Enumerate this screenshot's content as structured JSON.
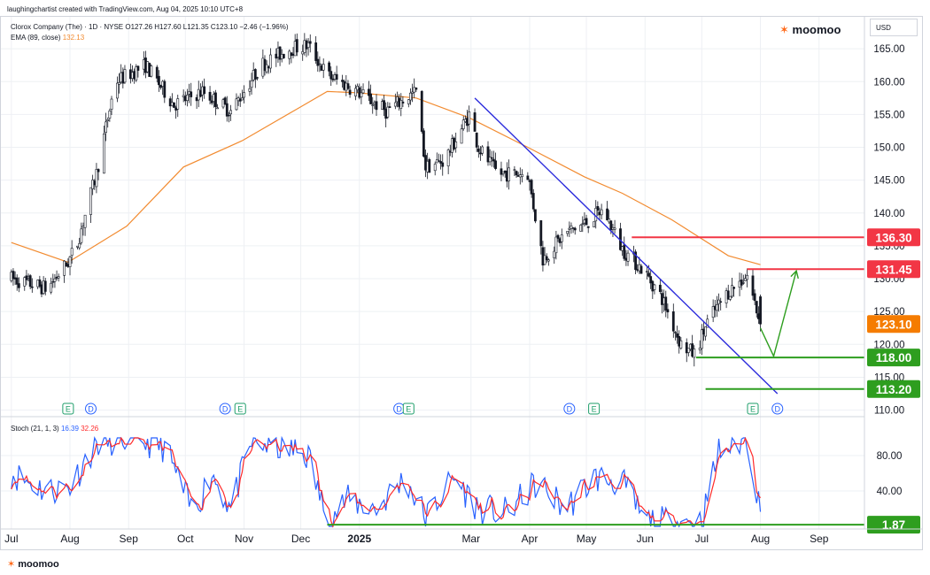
{
  "header": {
    "credit": "laughingchartist created with TradingView.com, Aug 04, 2025 10:10 UTC+8",
    "symbol_line": "Clorox Company (The) · 1D · NYSE O127.26 H127.60 L121.35 C123.10 −2.46 (−1.96%)",
    "ema_label": "EMA (89, close)",
    "ema_value": "132.13",
    "stoch_label": "Stoch (21, 1, 3)",
    "stoch_k_value": "16.39",
    "stoch_d_value": "32.26",
    "currency": "USD"
  },
  "brand": {
    "top_right": "moomoo",
    "bottom_left": "moomoo"
  },
  "colors": {
    "candle": "#131722",
    "ema": "#f28b30",
    "trendline": "#2b2bdc",
    "resistance": "#f23645",
    "support": "#2e9e1f",
    "price_tag": "#f57c00",
    "stoch_k": "#2962ff",
    "stoch_d": "#ff2a2a",
    "grid": "#eef0f4"
  },
  "chart_data": [
    {
      "type": "candlestick",
      "title": "Clorox Company (The) · 1D · NYSE",
      "x_tick_labels": [
        "Jul",
        "Aug",
        "Sep",
        "Oct",
        "Nov",
        "Dec",
        "2025",
        "Mar",
        "Apr",
        "May",
        "Jun",
        "Jul",
        "Aug",
        "Sep"
      ],
      "y_tick_labels": [
        "110.00",
        "115.00",
        "120.00",
        "125.00",
        "130.00",
        "135.00",
        "140.00",
        "145.00",
        "150.00",
        "155.00",
        "160.00",
        "165.00"
      ],
      "ylim": [
        109,
        170
      ],
      "grid": true,
      "price_anchors": {
        "x": [
          "2024-07-01",
          "2024-07-20",
          "2024-07-31",
          "2024-08-05",
          "2024-08-15",
          "2024-08-25",
          "2024-09-10",
          "2024-09-25",
          "2024-10-10",
          "2024-10-25",
          "2024-11-10",
          "2024-11-25",
          "2024-12-05",
          "2024-12-15",
          "2024-12-31",
          "2025-01-15",
          "2025-01-31",
          "2025-02-05",
          "2025-02-15",
          "2025-02-28",
          "2025-03-05",
          "2025-03-15",
          "2025-03-31",
          "2025-04-08",
          "2025-04-20",
          "2025-05-01",
          "2025-05-10",
          "2025-05-20",
          "2025-06-01",
          "2025-06-10",
          "2025-06-20",
          "2025-06-27",
          "2025-07-05",
          "2025-07-15",
          "2025-07-25",
          "2025-08-01"
        ],
        "y": [
          130,
          128.5,
          132.5,
          135.5,
          146,
          160,
          162.5,
          156.5,
          158.5,
          155.5,
          162.5,
          165,
          165.5,
          161,
          158.5,
          155.5,
          158.5,
          147,
          148,
          155,
          150,
          146,
          146,
          133,
          137,
          138.5,
          140.5,
          134.5,
          131,
          127,
          120,
          118.5,
          124,
          128,
          130.5,
          123.1
        ]
      },
      "ema": {
        "name": "EMA (89, close)",
        "x": [
          "2024-07-01",
          "2024-07-31",
          "2024-08-31",
          "2024-09-30",
          "2024-10-31",
          "2024-11-30",
          "2024-12-15",
          "2024-12-31",
          "2025-01-31",
          "2025-02-28",
          "2025-03-31",
          "2025-04-30",
          "2025-05-20",
          "2025-06-15",
          "2025-07-15",
          "2025-08-01"
        ],
        "y": [
          135.5,
          132.5,
          138,
          147,
          151,
          156,
          158.5,
          158.3,
          157.5,
          154.5,
          150,
          145.5,
          143,
          139,
          133.5,
          132.13
        ]
      },
      "annotations": {
        "horizontal_levels": [
          {
            "value": 136.3,
            "label": "136.30",
            "color": "#f23645",
            "from": "2025-05-25"
          },
          {
            "value": 131.45,
            "label": "131.45",
            "color": "#f23645",
            "from": "2025-07-25"
          },
          {
            "value": 118.0,
            "label": "118.00",
            "color": "#2e9e1f",
            "from": "2025-06-28"
          },
          {
            "value": 113.2,
            "label": "113.20",
            "color": "#2e9e1f",
            "from": "2025-07-03"
          }
        ],
        "last_price": {
          "value": 123.1,
          "label": "123.10"
        },
        "trendline": {
          "from": [
            "2025-03-03",
            157.5
          ],
          "to": [
            "2025-08-10",
            112.5
          ]
        },
        "projection_arrow": [
          [
            "2025-08-01",
            122.5
          ],
          [
            "2025-08-08",
            118.2
          ],
          [
            "2025-08-20",
            131.2
          ]
        ],
        "events": [
          {
            "date": "2024-07-31",
            "label": "E"
          },
          {
            "date": "2024-08-12",
            "label": "D"
          },
          {
            "date": "2024-10-22",
            "label": "D"
          },
          {
            "date": "2024-10-30",
            "label": "E"
          },
          {
            "date": "2025-01-22",
            "label": "D"
          },
          {
            "date": "2025-01-27",
            "label": "E"
          },
          {
            "date": "2025-04-22",
            "label": "D"
          },
          {
            "date": "2025-05-05",
            "label": "E"
          },
          {
            "date": "2025-07-28",
            "label": "E"
          },
          {
            "date": "2025-08-10",
            "label": "D"
          }
        ]
      }
    },
    {
      "type": "line",
      "title": "Stoch (21, 1, 3)",
      "y_tick_labels": [
        "40.00",
        "80.00"
      ],
      "ylim": [
        -3,
        115
      ],
      "series_anchors": {
        "x": [
          "2024-07-01",
          "2024-07-20",
          "2024-08-01",
          "2024-08-15",
          "2024-09-01",
          "2024-09-20",
          "2024-10-05",
          "2024-10-15",
          "2024-10-25",
          "2024-11-05",
          "2024-11-20",
          "2024-12-05",
          "2024-12-15",
          "2024-12-25",
          "2025-01-10",
          "2025-01-25",
          "2025-02-05",
          "2025-02-20",
          "2025-03-05",
          "2025-03-20",
          "2025-04-05",
          "2025-04-20",
          "2025-05-05",
          "2025-05-20",
          "2025-06-01",
          "2025-06-20",
          "2025-07-01",
          "2025-07-10",
          "2025-07-20",
          "2025-07-25",
          "2025-08-01"
        ],
        "y": [
          60,
          40,
          45,
          95,
          100,
          90,
          15,
          60,
          20,
          95,
          90,
          80,
          5,
          30,
          20,
          55,
          10,
          55,
          20,
          15,
          50,
          20,
          55,
          50,
          5,
          5,
          5,
          85,
          95,
          100,
          16.39
        ]
      },
      "stoch_last": {
        "value": 1.87,
        "label": "1.87"
      },
      "support_line": {
        "value": 1.87,
        "from": "2024-12-15"
      }
    }
  ]
}
